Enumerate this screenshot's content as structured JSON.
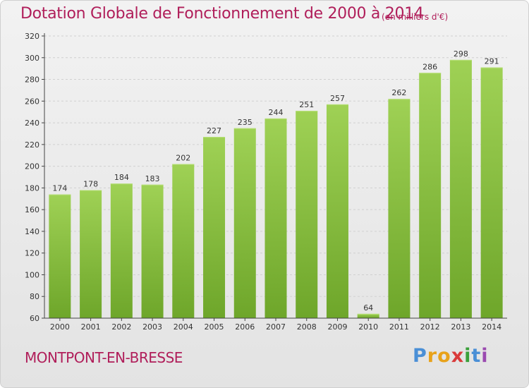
{
  "header": {
    "title": "Dotation Globale de Fonctionnement de 2000 à 2014",
    "unit_note": "(en milliers d'€)"
  },
  "footer": {
    "town": "MONTPONT-EN-BRESSE",
    "logo_letters": [
      "P",
      "r",
      "o",
      "x",
      "i",
      "t",
      "i"
    ],
    "logo_colors": [
      "#4a8fd6",
      "#e8a21a",
      "#e8a21a",
      "#d93a3a",
      "#3aa03a",
      "#4a8fd6",
      "#9a4ab0"
    ]
  },
  "chart_data": {
    "type": "bar",
    "title": "Dotation Globale de Fonctionnement de 2000 à 2014",
    "xlabel": "",
    "ylabel": "",
    "categories": [
      "2000",
      "2001",
      "2002",
      "2003",
      "2004",
      "2005",
      "2006",
      "2007",
      "2008",
      "2009",
      "2010",
      "2011",
      "2012",
      "2013",
      "2014"
    ],
    "values": [
      174,
      178,
      184,
      183,
      202,
      227,
      235,
      244,
      251,
      257,
      64,
      262,
      286,
      298,
      291
    ],
    "ylim": [
      60,
      320
    ],
    "yticks": [
      60,
      80,
      100,
      120,
      140,
      160,
      180,
      200,
      220,
      240,
      260,
      280,
      300,
      320
    ],
    "grid": true,
    "legend": "none",
    "colors": {
      "bar_light": "#9fd155",
      "bar_dark": "#6ea62a",
      "grid": "#d0d0d0",
      "axis": "#444444"
    }
  }
}
